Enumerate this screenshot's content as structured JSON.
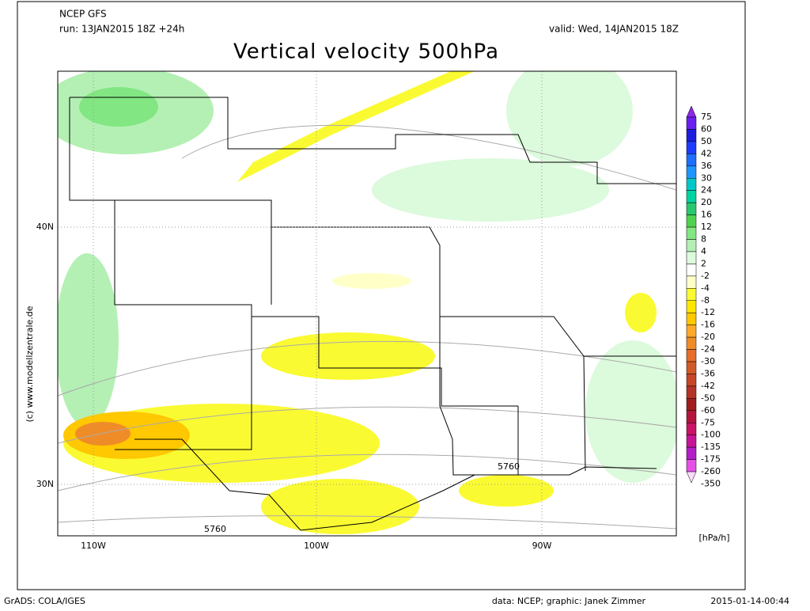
{
  "header": {
    "model": "NCEP GFS",
    "run": "run: 13JAN2015 18Z +24h",
    "valid": "valid: Wed, 14JAN2015 18Z",
    "title": "Vertical velocity 500hPa"
  },
  "map": {
    "lat_labels": [
      "40N",
      "30N"
    ],
    "lon_labels": [
      "110W",
      "100W",
      "90W"
    ],
    "contour_labels": [
      "5760",
      "5760"
    ],
    "copyright": "(c) www.modellzentrale.de"
  },
  "legend": {
    "unit": "[hPa/h]",
    "labels": [
      "75",
      "60",
      "50",
      "42",
      "36",
      "30",
      "24",
      "20",
      "16",
      "12",
      "8",
      "4",
      "2",
      "-2",
      "-4",
      "-8",
      "-12",
      "-16",
      "-20",
      "-24",
      "-30",
      "-36",
      "-42",
      "-50",
      "-60",
      "-75",
      "-100",
      "-135",
      "-175",
      "-260",
      "-350"
    ],
    "colors": [
      "#8c28e6",
      "#6a1ff0",
      "#1e1ee0",
      "#1e3cff",
      "#1e6eff",
      "#1e96ff",
      "#00c8c8",
      "#00d2a0",
      "#28c86e",
      "#50d250",
      "#82e682",
      "#b4f0b4",
      "#dcfadc",
      "#ffffff",
      "#ffffc8",
      "#fafa32",
      "#ffe600",
      "#ffc800",
      "#ffaa28",
      "#f08c28",
      "#e66e28",
      "#d25a28",
      "#c84628",
      "#b43228",
      "#a01e1e",
      "#b4143c",
      "#c81464",
      "#c81496",
      "#b41ec8",
      "#e650e6",
      "#fadcfa"
    ]
  },
  "footer": {
    "software": "GrADS: COLA/IGES",
    "credit": "data: NCEP; graphic: Janek Zimmer",
    "timestamp": "2015-01-14-00:44"
  }
}
